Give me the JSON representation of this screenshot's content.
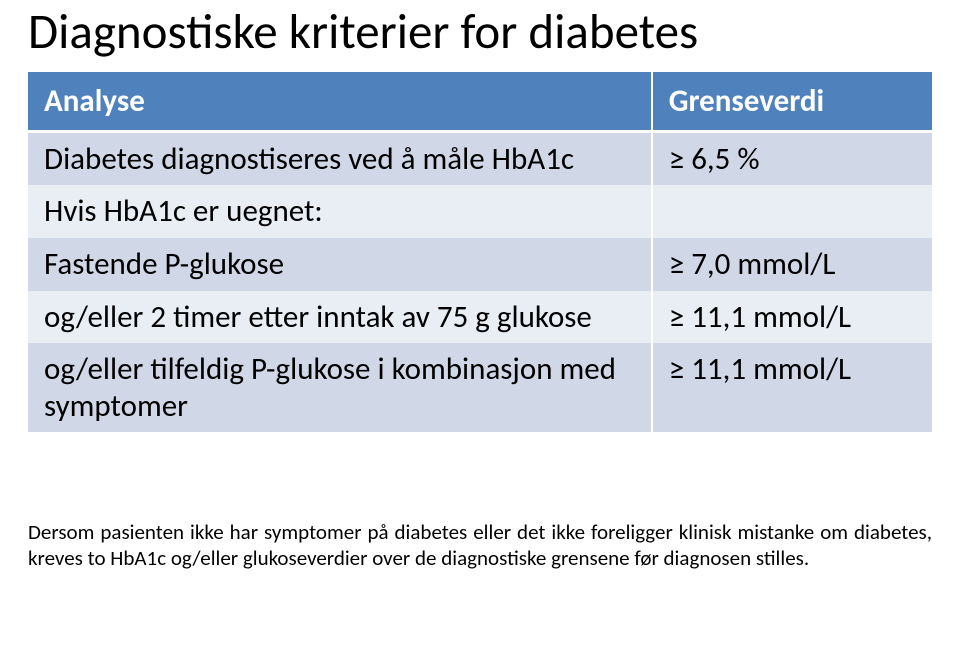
{
  "title": "Diagnostiske kriterier for diabetes",
  "table": {
    "type": "table",
    "header_bg": "#4f81bd",
    "header_fg": "#ffffff",
    "band_light": "#d0d8e8",
    "band_dark": "#e9edf4",
    "border_color": "#ffffff",
    "font_size_pt": 23,
    "columns": [
      {
        "key": "analyse",
        "label": "Analyse",
        "width_pct": 69
      },
      {
        "key": "grense",
        "label": "Grenseverdi",
        "width_pct": 31
      }
    ],
    "rows": [
      {
        "analyse": "Diabetes diagnostiseres ved å måle HbA1c",
        "grense": "≥ 6,5 %"
      },
      {
        "analyse": "Hvis HbA1c er uegnet:",
        "grense": ""
      },
      {
        "analyse": "Fastende P-glukose",
        "grense": "≥ 7,0 mmol/L"
      },
      {
        "analyse": "og/eller 2 timer etter inntak av 75 g glukose",
        "grense": "≥ 11,1 mmol/L"
      },
      {
        "analyse": "og/eller tilfeldig P-glukose i kombinasjon med symptomer",
        "grense": "≥ 11,1 mmol/L"
      }
    ]
  },
  "footnote": "Dersom pasienten ikke har symptomer på diabetes eller det ikke foreligger klinisk mistanke om diabetes, kreves to HbA1c og/eller glukoseverdier over de diagnostiske grensene før diagnosen stilles."
}
